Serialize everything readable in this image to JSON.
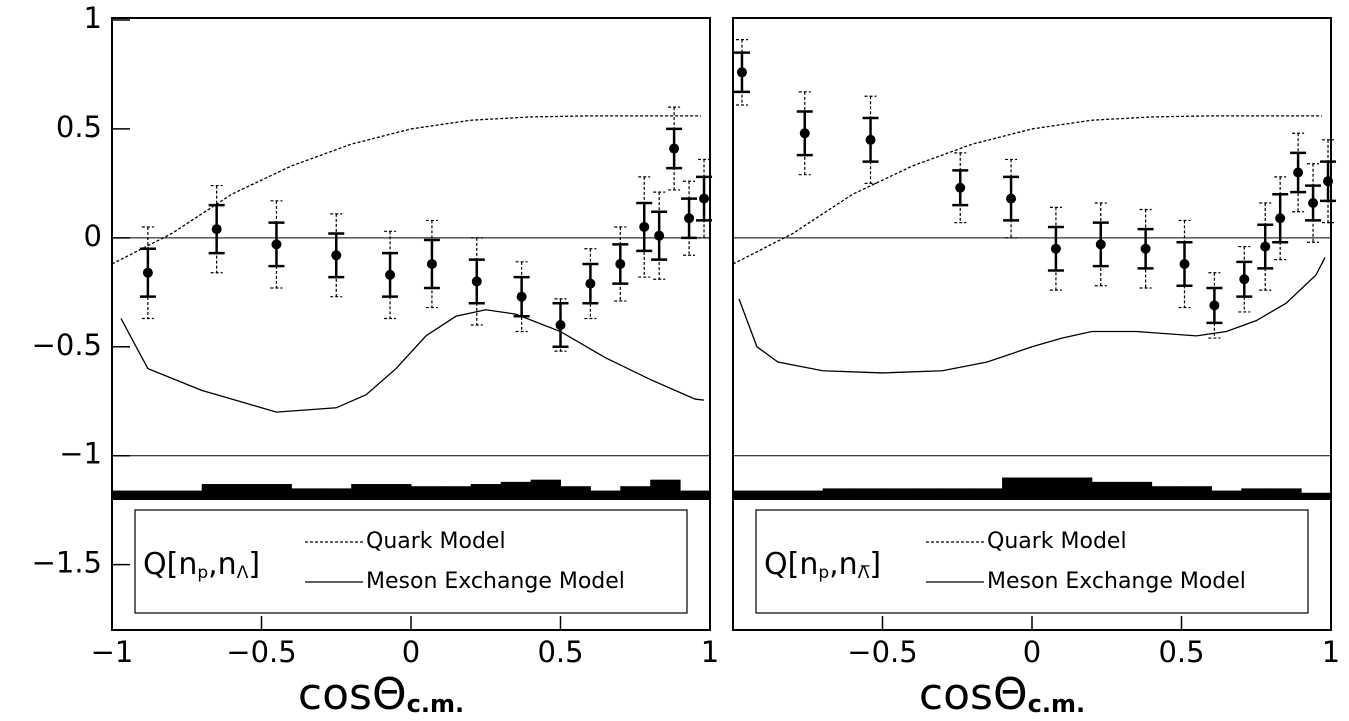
{
  "chart_data": [
    {
      "type": "scatter",
      "xlim": [
        -1,
        1
      ],
      "ylim": [
        -1.8,
        1
      ],
      "xticks": [
        {
          "value": -1,
          "label": "−1"
        },
        {
          "value": -0.5,
          "label": "−0.5"
        },
        0,
        0.5,
        1
      ],
      "yticks": [
        1,
        0.5,
        0,
        {
          "value": -0.5,
          "label": "−0.5"
        },
        {
          "value": -1,
          "label": "−1"
        },
        {
          "value": -1.5,
          "label": "−1.5"
        }
      ],
      "xlabel": "cosΘ",
      "xlabel_sub": "c.m.",
      "legend_label": [
        "Q[n",
        "p",
        ",n",
        "Λ",
        "]"
      ],
      "points": {
        "x": [
          -0.88,
          -0.65,
          -0.45,
          -0.25,
          -0.07,
          0.07,
          0.22,
          0.37,
          0.5,
          0.6,
          0.7,
          0.78,
          0.83,
          0.88,
          0.93,
          0.98
        ],
        "y": [
          -0.16,
          0.04,
          -0.03,
          -0.08,
          -0.17,
          -0.12,
          -0.2,
          -0.27,
          -0.4,
          -0.21,
          -0.12,
          0.05,
          0.01,
          0.41,
          0.09,
          0.18
        ],
        "stat_err": [
          0.11,
          0.11,
          0.1,
          0.1,
          0.1,
          0.11,
          0.1,
          0.09,
          0.1,
          0.09,
          0.09,
          0.11,
          0.11,
          0.09,
          0.09,
          0.1
        ],
        "sys_err": [
          0.21,
          0.2,
          0.2,
          0.19,
          0.2,
          0.2,
          0.2,
          0.16,
          0.12,
          0.16,
          0.17,
          0.23,
          0.2,
          0.19,
          0.17,
          0.18
        ]
      },
      "series": [
        {
          "name": "Quark Model",
          "style": "dotted",
          "x": [
            -1,
            -0.8,
            -0.6,
            -0.4,
            -0.2,
            0,
            0.2,
            0.4,
            0.6,
            0.8,
            0.97
          ],
          "values": [
            -0.12,
            0.02,
            0.2,
            0.33,
            0.43,
            0.5,
            0.54,
            0.555,
            0.56,
            0.56,
            0.56
          ]
        },
        {
          "name": "Meson Exchange Model",
          "style": "solid",
          "x": [
            -0.97,
            -0.88,
            -0.7,
            -0.55,
            -0.45,
            -0.25,
            -0.15,
            -0.05,
            0.05,
            0.15,
            0.25,
            0.35,
            0.5,
            0.65,
            0.8,
            0.95,
            0.98
          ],
          "values": [
            -0.37,
            -0.6,
            -0.7,
            -0.76,
            -0.8,
            -0.78,
            -0.72,
            -0.6,
            -0.45,
            -0.36,
            -0.33,
            -0.35,
            -0.43,
            -0.55,
            -0.65,
            -0.74,
            -0.745
          ]
        }
      ],
      "hlines": [
        0,
        -1
      ],
      "acceptance": {
        "bins": [
          -1,
          -0.9,
          -0.8,
          -0.7,
          -0.6,
          -0.5,
          -0.4,
          -0.3,
          -0.2,
          -0.1,
          0,
          0.1,
          0.2,
          0.3,
          0.4,
          0.5,
          0.6,
          0.7,
          0.8,
          0.9,
          1
        ],
        "values": [
          -1.16,
          -1.16,
          -1.16,
          -1.13,
          -1.13,
          -1.13,
          -1.15,
          -1.15,
          -1.13,
          -1.13,
          -1.14,
          -1.14,
          -1.13,
          -1.12,
          -1.11,
          -1.14,
          -1.16,
          -1.14,
          -1.11,
          -1.16
        ]
      }
    },
    {
      "type": "scatter",
      "xlim": [
        -1,
        1
      ],
      "ylim": [
        -1.8,
        1
      ],
      "xticks": [
        {
          "value": -0.5,
          "label": "−0.5"
        },
        0,
        0.5,
        1
      ],
      "xlabel": "cosΘ",
      "xlabel_sub": "c.m.",
      "legend_label": [
        "Q[n",
        "p",
        ",n",
        "Λ̅",
        "]"
      ],
      "points": {
        "x": [
          -0.97,
          -0.76,
          -0.54,
          -0.24,
          -0.07,
          0.08,
          0.23,
          0.38,
          0.51,
          0.61,
          0.71,
          0.78,
          0.83,
          0.89,
          0.94,
          0.99
        ],
        "y": [
          0.76,
          0.48,
          0.45,
          0.23,
          0.18,
          -0.05,
          -0.03,
          -0.05,
          -0.12,
          -0.31,
          -0.19,
          -0.04,
          0.09,
          0.3,
          0.16,
          0.26
        ],
        "stat_err": [
          0.09,
          0.1,
          0.1,
          0.08,
          0.1,
          0.1,
          0.1,
          0.09,
          0.1,
          0.08,
          0.08,
          0.1,
          0.11,
          0.09,
          0.08,
          0.09
        ],
        "sys_err": [
          0.15,
          0.19,
          0.2,
          0.16,
          0.18,
          0.19,
          0.19,
          0.18,
          0.2,
          0.15,
          0.15,
          0.2,
          0.19,
          0.18,
          0.18,
          0.19
        ]
      },
      "series": [
        {
          "name": "Quark Model",
          "style": "dotted",
          "x": [
            -1,
            -0.8,
            -0.6,
            -0.4,
            -0.2,
            0,
            0.2,
            0.4,
            0.6,
            0.8,
            0.97
          ],
          "values": [
            -0.12,
            0.02,
            0.2,
            0.33,
            0.43,
            0.5,
            0.54,
            0.555,
            0.56,
            0.56,
            0.56
          ]
        },
        {
          "name": "Meson Exchange Model",
          "style": "solid",
          "x": [
            -0.98,
            -0.92,
            -0.85,
            -0.7,
            -0.5,
            -0.3,
            -0.15,
            0,
            0.1,
            0.2,
            0.35,
            0.55,
            0.65,
            0.75,
            0.85,
            0.95,
            0.98
          ],
          "values": [
            -0.28,
            -0.5,
            -0.57,
            -0.61,
            -0.62,
            -0.61,
            -0.57,
            -0.5,
            -0.46,
            -0.43,
            -0.43,
            -0.45,
            -0.43,
            -0.38,
            -0.3,
            -0.17,
            -0.09
          ]
        }
      ],
      "hlines": [
        0,
        -1
      ],
      "acceptance": {
        "bins": [
          -1,
          -0.9,
          -0.8,
          -0.7,
          -0.6,
          -0.5,
          -0.4,
          -0.3,
          -0.2,
          -0.1,
          0,
          0.1,
          0.2,
          0.3,
          0.4,
          0.5,
          0.6,
          0.7,
          0.8,
          0.9,
          1
        ],
        "values": [
          -1.16,
          -1.16,
          -1.16,
          -1.15,
          -1.15,
          -1.15,
          -1.15,
          -1.15,
          -1.15,
          -1.1,
          -1.1,
          -1.1,
          -1.12,
          -1.12,
          -1.14,
          -1.14,
          -1.16,
          -1.15,
          -1.15,
          -1.17
        ]
      }
    }
  ]
}
